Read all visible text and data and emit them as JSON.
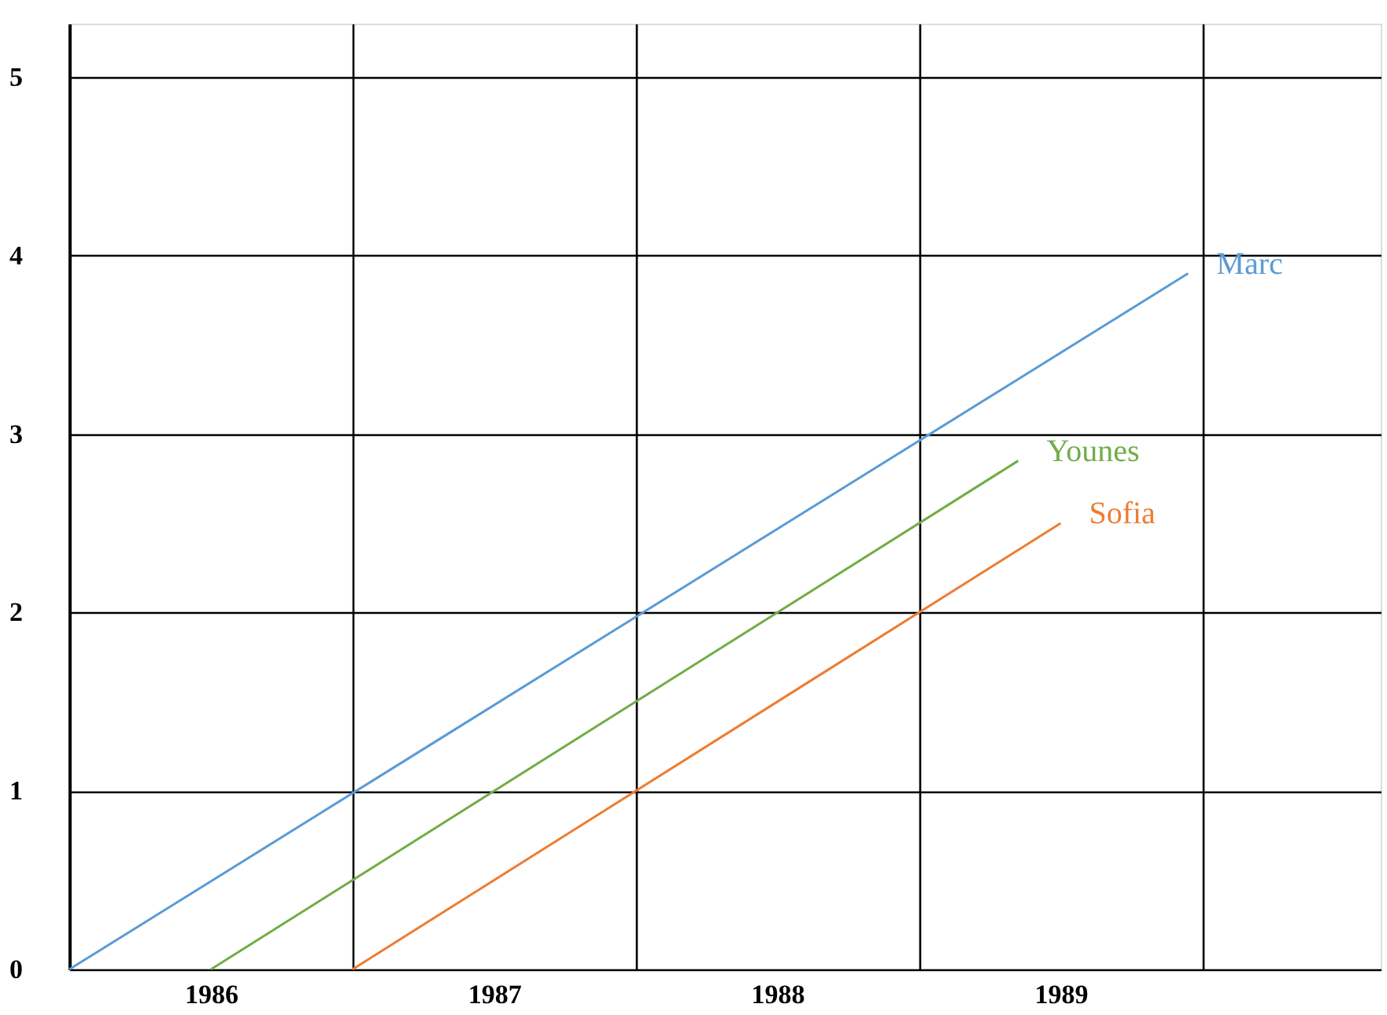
{
  "chart_data": {
    "type": "line",
    "series": [
      {
        "name": "Marc",
        "color": "#5b9bd5",
        "x": [
          1985.5,
          1989.45
        ],
        "values": [
          0,
          3.9
        ]
      },
      {
        "name": "Younes",
        "color": "#70ad47",
        "x": [
          1986.0,
          1988.85
        ],
        "values": [
          0,
          2.85
        ]
      },
      {
        "name": "Sofia",
        "color": "#ed7d31",
        "x": [
          1986.5,
          1989.0
        ],
        "values": [
          0,
          2.5
        ]
      }
    ],
    "xlim": [
      1985.5,
      1990.13
    ],
    "xticks": [
      {
        "value": 1985.5,
        "label": null
      },
      1986,
      {
        "value": 1986.5,
        "label": null
      },
      1987,
      {
        "value": 1987.5,
        "label": null
      },
      1988,
      {
        "value": 1988.5,
        "label": null
      },
      1989,
      {
        "value": 1989.5,
        "label": null
      }
    ],
    "ylim": [
      0,
      5.3
    ],
    "yticks": [
      0,
      1,
      2,
      3,
      4,
      5
    ],
    "grid": true,
    "legend": false
  }
}
